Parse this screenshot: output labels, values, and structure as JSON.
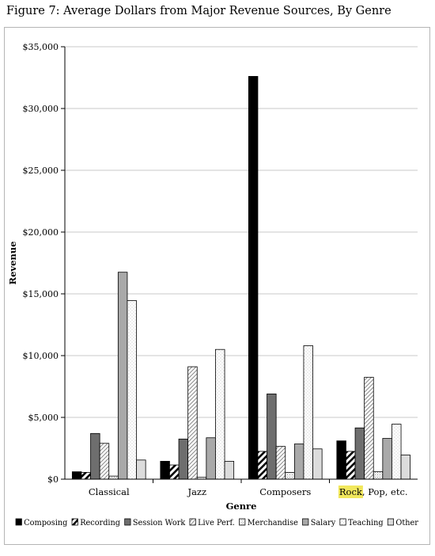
{
  "figure": {
    "title": "Figure 7: Average Dollars from Major Revenue Sources, By Genre"
  },
  "chart_data": {
    "type": "bar",
    "title": "Figure 7: Average Dollars from Major Revenue Sources, By Genre",
    "xlabel": "Genre",
    "ylabel": "Revenue",
    "ylim": [
      0,
      35000
    ],
    "y_ticks": [
      0,
      5000,
      10000,
      15000,
      20000,
      25000,
      30000,
      35000
    ],
    "y_tick_labels": [
      "$0",
      "$5,000",
      "$10,000",
      "$15,000",
      "$20,000",
      "$25,000",
      "$30,000",
      "$35,000"
    ],
    "grid": true,
    "legend_position": "bottom",
    "categories": [
      "Classical",
      "Jazz",
      "Composers",
      "Rock, Pop, etc."
    ],
    "highlight": {
      "category_index": 3,
      "text": "Rock",
      "color": "#f1e75c"
    },
    "series": [
      {
        "name": "Composing",
        "pattern": "solid-black",
        "values": [
          600,
          1450,
          32600,
          3100
        ]
      },
      {
        "name": "Recording",
        "pattern": "black-diagonal",
        "values": [
          550,
          1150,
          2250,
          2250
        ]
      },
      {
        "name": "Session Work",
        "pattern": "dark-gray",
        "values": [
          3700,
          3250,
          6900,
          4150
        ]
      },
      {
        "name": "Live Perf.",
        "pattern": "diagonal-hatch",
        "values": [
          2900,
          9100,
          2650,
          8250
        ]
      },
      {
        "name": "Merchandise",
        "pattern": "dots",
        "values": [
          250,
          150,
          550,
          600
        ]
      },
      {
        "name": "Salary",
        "pattern": "gray",
        "values": [
          16750,
          3350,
          2850,
          3300
        ]
      },
      {
        "name": "Teaching",
        "pattern": "fine-dots",
        "values": [
          14450,
          10500,
          10800,
          4450
        ]
      },
      {
        "name": "Other",
        "pattern": "light-gray",
        "values": [
          1550,
          1450,
          2450,
          1950
        ]
      }
    ]
  }
}
